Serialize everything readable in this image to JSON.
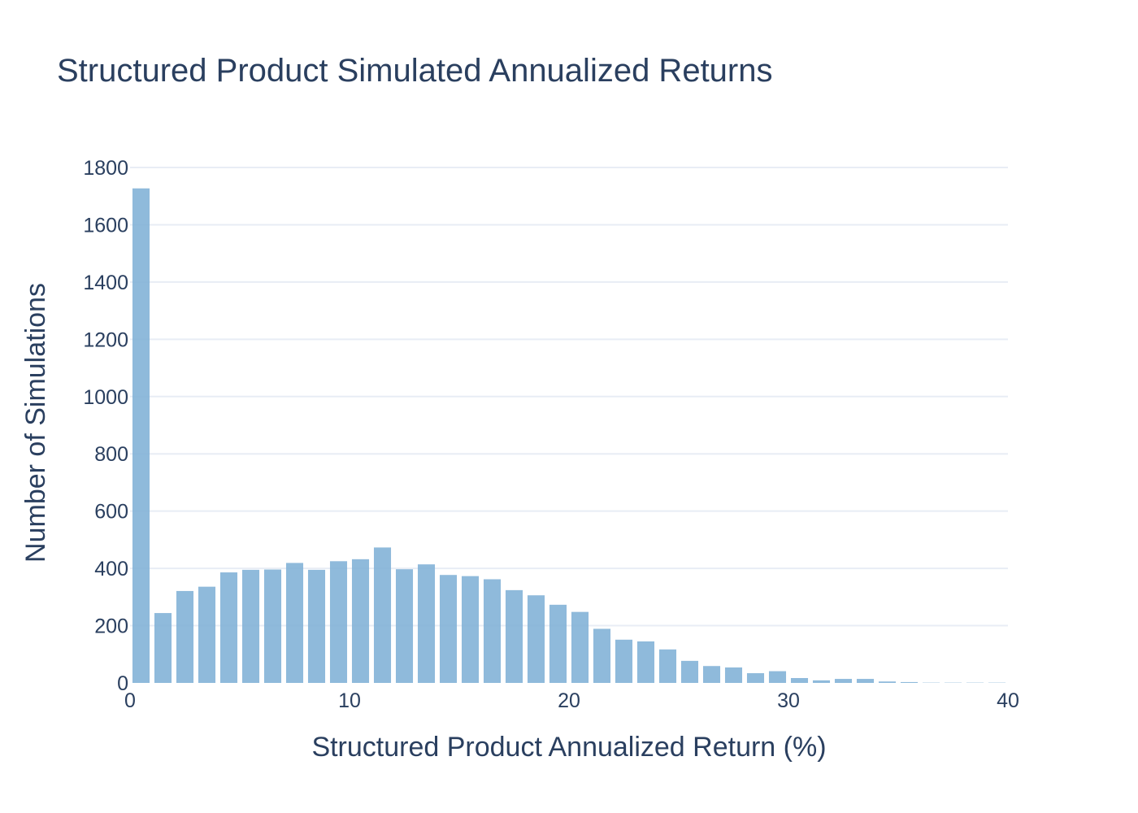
{
  "chart_data": {
    "type": "bar",
    "title": "Structured Product Simulated Annualized Returns",
    "xlabel": "Structured Product Annualized Return (%)",
    "ylabel": "Number of Simulations",
    "xlim": [
      0,
      40
    ],
    "ylim": [
      0,
      1800
    ],
    "x_ticks": [
      "0",
      "10",
      "20",
      "30",
      "40"
    ],
    "y_ticks": [
      "0",
      "200",
      "400",
      "600",
      "800",
      "1000",
      "1200",
      "1400",
      "1600",
      "1800"
    ],
    "bin_width": 1,
    "bin_starts": [
      0,
      1,
      2,
      3,
      4,
      5,
      6,
      7,
      8,
      9,
      10,
      11,
      12,
      13,
      14,
      15,
      16,
      17,
      18,
      19,
      20,
      21,
      22,
      23,
      24,
      25,
      26,
      27,
      28,
      29,
      30,
      31,
      32,
      33,
      34,
      35,
      36,
      37,
      38,
      39
    ],
    "values": [
      1727,
      244,
      321,
      336,
      386,
      395,
      396,
      419,
      395,
      425,
      432,
      473,
      397,
      414,
      377,
      373,
      362,
      324,
      306,
      273,
      248,
      189,
      151,
      145,
      117,
      77,
      59,
      54,
      34,
      41,
      17,
      9,
      14,
      14,
      5,
      3,
      1,
      1,
      1,
      1
    ],
    "grid": true,
    "color": "#7fb1d6"
  }
}
